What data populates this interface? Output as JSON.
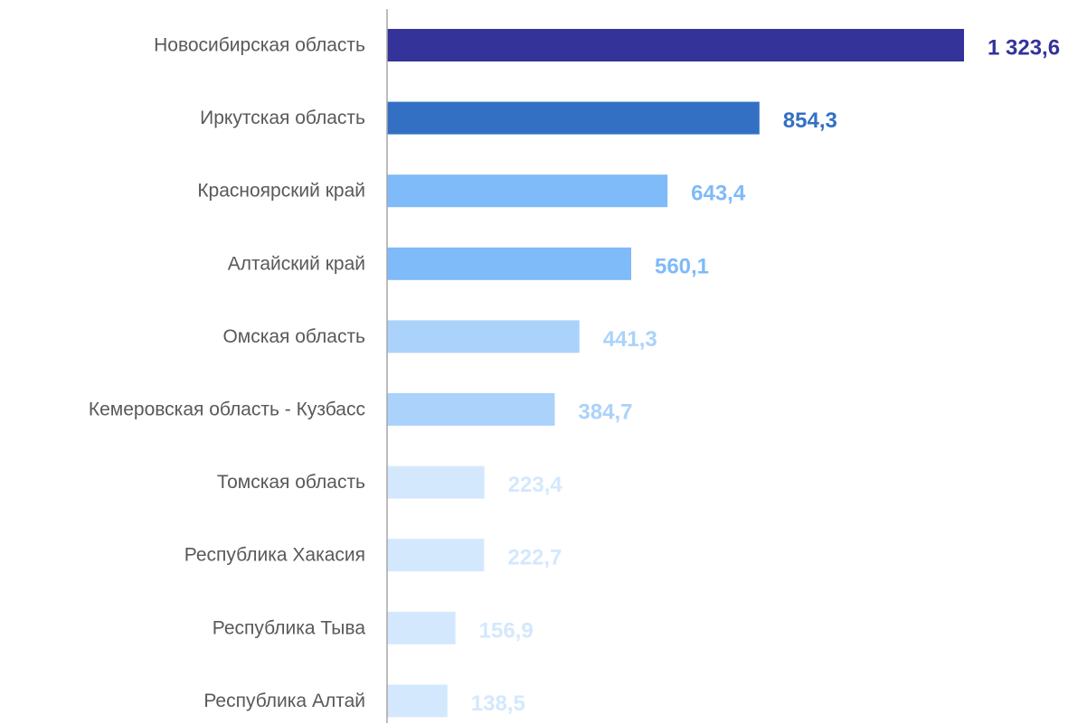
{
  "chart_data": {
    "type": "bar",
    "orientation": "horizontal",
    "title": "",
    "xlabel": "",
    "ylabel": "",
    "grid": false,
    "legend": "none",
    "categories": [
      "Новосибирская область",
      "Иркутская область",
      "Красноярский край",
      "Алтайский край",
      "Омская область",
      "Кемеровская область - Кузбасс",
      "Томская область",
      "Республика Хакасия",
      "Республика Тыва",
      "Республика Алтай"
    ],
    "values": [
      1323.6,
      854.3,
      643.4,
      560.1,
      441.3,
      384.7,
      223.4,
      222.7,
      156.9,
      138.5
    ],
    "value_labels": [
      "1 323,6",
      "854,3",
      "643,4",
      "560,1",
      "441,3",
      "384,7",
      "223,4",
      "222,7",
      "156,9",
      "138,5"
    ],
    "xlim": [
      0,
      1323.6
    ],
    "colors": [
      "#333399",
      "#3370c4",
      "#7fbaf9",
      "#7fbaf9",
      "#abd2fb",
      "#abd2fb",
      "#d4e8fd",
      "#d4e8fd",
      "#d4e8fd",
      "#d4e8fd"
    ],
    "axis_color": "#a6a6a6"
  }
}
